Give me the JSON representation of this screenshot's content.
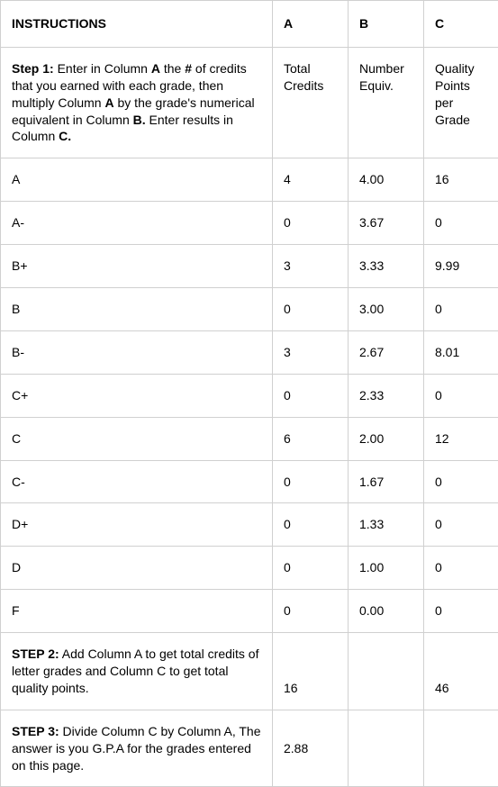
{
  "header": {
    "instructions": "INSTRUCTIONS",
    "colA": "A",
    "colB": "B",
    "colC": "C"
  },
  "step1": {
    "prefix": "Step 1:",
    "text1": "  Enter in Column  ",
    "boldA": "A",
    "text2": " the  ",
    "boldHash": "#",
    "text3": " of credits that you earned with each grade, then multiply Column  ",
    "boldA2": "A",
    "text4": " by the grade's numerical equivalent in Column   ",
    "boldB": "B.",
    "text5": " Enter results in Column   ",
    "boldC": "C.",
    "colA": "Total Credits",
    "colB": "Number Equiv.",
    "colC": "Quality Points per Grade"
  },
  "rows": [
    {
      "grade": "A",
      "a": "4",
      "b": "4.00",
      "c": "16"
    },
    {
      "grade": "A-",
      "a": "0",
      "b": "3.67",
      "c": "0"
    },
    {
      "grade": "B+",
      "a": "3",
      "b": "3.33",
      "c": "9.99"
    },
    {
      "grade": "B",
      "a": "0",
      "b": "3.00",
      "c": "0"
    },
    {
      "grade": "B-",
      "a": "3",
      "b": "2.67",
      "c": "8.01"
    },
    {
      "grade": "C+",
      "a": "0",
      "b": "2.33",
      "c": "0"
    },
    {
      "grade": "C",
      "a": "6",
      "b": "2.00",
      "c": "12"
    },
    {
      "grade": "C-",
      "a": "0",
      "b": "1.67",
      "c": "0"
    },
    {
      "grade": "D+",
      "a": "0",
      "b": "1.33",
      "c": "0"
    },
    {
      "grade": "D",
      "a": "0",
      "b": "1.00",
      "c": "0"
    },
    {
      "grade": "F",
      "a": "0",
      "b": "0.00",
      "c": "0"
    }
  ],
  "step2": {
    "prefix": "STEP 2:",
    "text": "  Add Column A to get total credits of letter grades and Column C to get total quality points.",
    "a": "16",
    "b": "",
    "c": "46"
  },
  "step3": {
    "prefix": "STEP 3:",
    "text": "  Divide Column C by Column A, The answer is you G.P.A for the grades entered on this page.",
    "a": "2.88",
    "b": "",
    "c": ""
  }
}
